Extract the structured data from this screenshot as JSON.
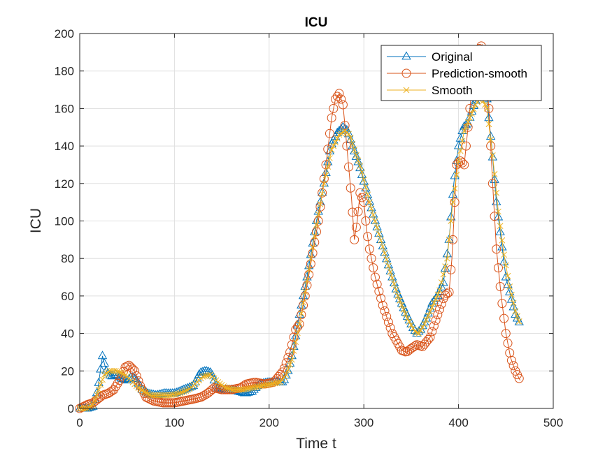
{
  "chart_data": {
    "type": "line",
    "title": "ICU",
    "xlabel": "Time t",
    "ylabel": "ICU",
    "xlim": [
      0,
      500
    ],
    "ylim": [
      0,
      200
    ],
    "xticks": [
      0,
      100,
      200,
      300,
      400,
      500
    ],
    "yticks": [
      0,
      20,
      40,
      60,
      80,
      100,
      120,
      140,
      160,
      180,
      200
    ],
    "grid": true,
    "legend_position": "top-right",
    "series": [
      {
        "name": "Original",
        "color": "#0072BD",
        "marker": "triangle",
        "x": [
          0,
          8,
          14,
          19,
          24,
          28,
          33,
          38,
          44,
          50,
          55,
          60,
          66,
          72,
          80,
          90,
          100,
          110,
          120,
          127,
          133,
          139,
          145,
          152,
          160,
          168,
          175,
          182,
          190,
          200,
          210,
          215,
          220,
          225,
          232,
          240,
          250,
          258,
          265,
          272,
          278,
          283,
          288,
          295,
          305,
          315,
          325,
          335,
          345,
          352,
          356,
          360,
          366,
          372,
          378,
          384,
          390,
          395,
          400,
          405,
          410,
          415,
          420,
          425,
          430,
          435,
          440,
          445,
          450,
          455,
          460,
          465
        ],
        "y": [
          0,
          0,
          1,
          10,
          28,
          20,
          17,
          18,
          16,
          15,
          17,
          15,
          10,
          8,
          7,
          8,
          8,
          10,
          12,
          19,
          20,
          19,
          11,
          10,
          10,
          9,
          8,
          9,
          13,
          14,
          14,
          14,
          20,
          30,
          50,
          70,
          100,
          120,
          140,
          147,
          150,
          148,
          140,
          130,
          112,
          95,
          78,
          62,
          50,
          43,
          40,
          42,
          48,
          56,
          60,
          67,
          90,
          120,
          140,
          150,
          152,
          160,
          167,
          170,
          165,
          140,
          110,
          90,
          70,
          60,
          50,
          45
        ]
      },
      {
        "name": "Prediction-smooth",
        "color": "#D95319",
        "marker": "circle",
        "x": [
          0,
          8,
          14,
          19,
          24,
          30,
          36,
          42,
          48,
          52,
          58,
          64,
          70,
          78,
          88,
          100,
          110,
          120,
          128,
          135,
          142,
          150,
          160,
          170,
          176,
          185,
          195,
          205,
          215,
          222,
          228,
          232,
          238,
          245,
          252,
          260,
          266,
          270,
          274,
          278,
          282,
          287,
          290,
          293,
          296,
          300,
          303,
          306,
          312,
          320,
          330,
          340,
          345,
          350,
          356,
          362,
          370,
          378,
          385,
          390,
          393,
          396,
          398,
          402,
          406,
          410,
          414,
          418,
          422,
          425,
          428,
          432,
          436,
          440,
          445,
          450,
          455,
          460,
          465
        ],
        "y": [
          0,
          2,
          3,
          5,
          7,
          8,
          10,
          15,
          22,
          23,
          20,
          12,
          6,
          4,
          3,
          3,
          4,
          5,
          6,
          8,
          11,
          10,
          10,
          11,
          13,
          14,
          13,
          14,
          20,
          30,
          42,
          45,
          60,
          80,
          100,
          130,
          155,
          165,
          168,
          162,
          140,
          112,
          90,
          100,
          115,
          110,
          95,
          85,
          70,
          55,
          40,
          31,
          30,
          32,
          34,
          33,
          38,
          50,
          60,
          62,
          80,
          110,
          130,
          132,
          130,
          150,
          170,
          182,
          192,
          194,
          186,
          160,
          120,
          85,
          60,
          40,
          27,
          20,
          15
        ]
      },
      {
        "name": "Smooth",
        "color": "#EDB120",
        "marker": "x",
        "x": [
          0,
          8,
          14,
          20,
          26,
          32,
          38,
          44,
          50,
          56,
          62,
          68,
          75,
          85,
          95,
          105,
          115,
          122,
          130,
          138,
          146,
          154,
          162,
          172,
          182,
          192,
          202,
          212,
          218,
          224,
          232,
          240,
          250,
          258,
          266,
          274,
          280,
          285,
          290,
          297,
          306,
          316,
          326,
          336,
          346,
          354,
          358,
          364,
          372,
          380,
          388,
          394,
          400,
          406,
          412,
          418,
          424,
          430,
          436,
          442,
          448,
          454,
          460,
          465
        ],
        "y": [
          0,
          0,
          2,
          10,
          18,
          20,
          20,
          19,
          17,
          14,
          11,
          9,
          7,
          7,
          7,
          8,
          10,
          13,
          17,
          18,
          14,
          11,
          10,
          10,
          11,
          12,
          13,
          14,
          18,
          26,
          45,
          68,
          98,
          120,
          138,
          146,
          148,
          146,
          138,
          128,
          110,
          93,
          76,
          60,
          48,
          41,
          40,
          45,
          54,
          63,
          80,
          110,
          132,
          148,
          155,
          162,
          166,
          160,
          135,
          105,
          82,
          65,
          52,
          45
        ]
      }
    ]
  }
}
